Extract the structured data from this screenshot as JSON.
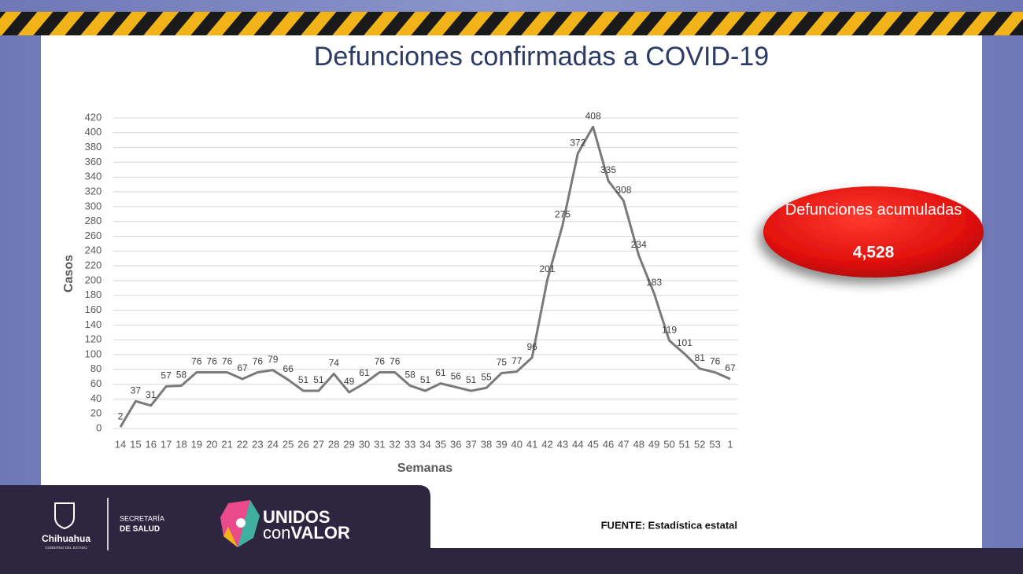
{
  "chart_data": {
    "type": "line",
    "title": "Defunciones confirmadas a COVID-19",
    "x_label": "Semanas",
    "y_label": "Casos",
    "categories": [
      "14",
      "15",
      "16",
      "17",
      "18",
      "19",
      "20",
      "21",
      "22",
      "23",
      "24",
      "25",
      "26",
      "27",
      "28",
      "29",
      "30",
      "31",
      "32",
      "33",
      "34",
      "35",
      "36",
      "37",
      "38",
      "39",
      "40",
      "41",
      "42",
      "43",
      "44",
      "45",
      "46",
      "47",
      "48",
      "49",
      "50",
      "51",
      "52",
      "53",
      "1"
    ],
    "values": [
      2,
      37,
      31,
      57,
      58,
      76,
      76,
      76,
      67,
      76,
      79,
      66,
      51,
      51,
      74,
      49,
      61,
      76,
      76,
      58,
      51,
      61,
      56,
      51,
      55,
      75,
      77,
      96,
      201,
      275,
      372,
      408,
      335,
      308,
      234,
      183,
      119,
      101,
      81,
      76,
      67
    ],
    "color": "#7a7a7a",
    "ylim": [
      0,
      420
    ],
    "yticks": [
      0,
      20,
      40,
      60,
      80,
      100,
      120,
      140,
      160,
      180,
      200,
      220,
      240,
      260,
      280,
      300,
      320,
      340,
      360,
      380,
      400,
      420
    ],
    "grid": true
  },
  "callout": {
    "title": "Defunciones acumuladas",
    "total": "4,528"
  },
  "footer": {
    "state": "Chihuahua",
    "state_sub": "GOBIERNO DEL ESTADO",
    "ministry_1": "SECRETARÍA",
    "ministry_2": "DE SALUD",
    "brand_1": "UNIDOS",
    "brand_2": "con",
    "brand_3": "VALOR",
    "source": "FUENTE: Estadística estatal"
  }
}
